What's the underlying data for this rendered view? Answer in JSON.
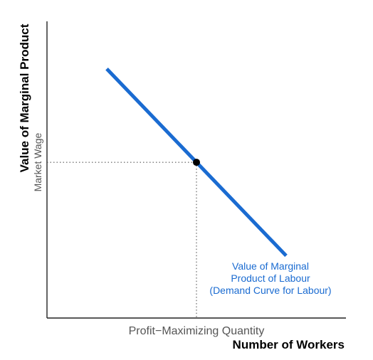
{
  "chart_data": {
    "type": "line",
    "xlabel": "Number of Workers",
    "ylabel": "Value of Marginal Product",
    "x_tick_label": "Profit−Maximizing Quantity",
    "y_tick_label": "Market Wage",
    "xlim": [
      0,
      10
    ],
    "ylim": [
      0,
      10
    ],
    "grid": false,
    "series": [
      {
        "name_lines": [
          "Value of Marginal",
          "Product of Labour",
          "(Demand Curve for Labour)"
        ],
        "x": [
          2,
          8
        ],
        "y": [
          8.4,
          2.1
        ],
        "color": "#1a6bd1"
      }
    ],
    "equilibrium": {
      "x": 5,
      "y": 5.25,
      "color": "#000000"
    }
  }
}
